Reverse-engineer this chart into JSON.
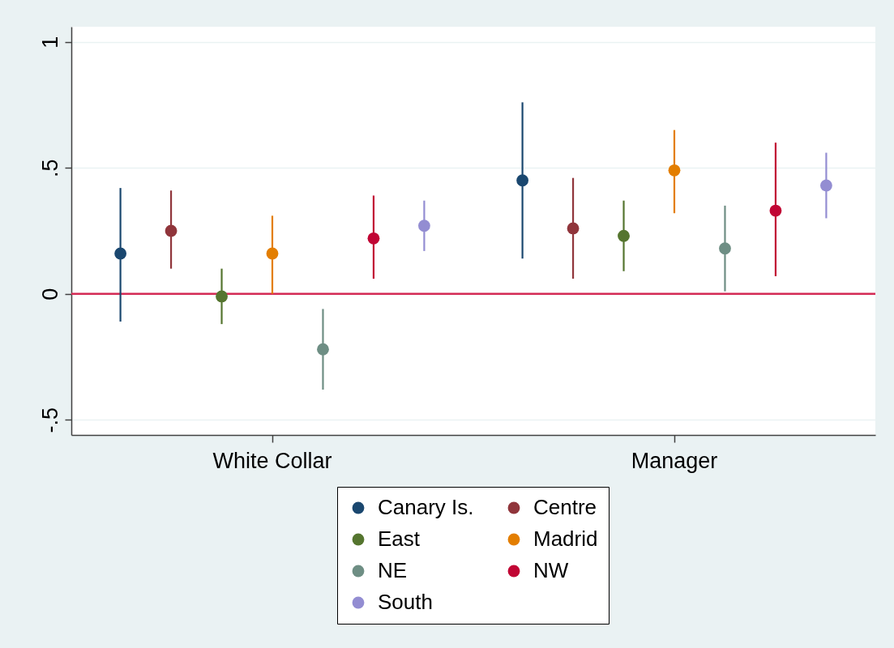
{
  "chart_data": {
    "type": "scatter",
    "categories": [
      "White Collar",
      "Manager"
    ],
    "series": [
      {
        "name": "Canary Is.",
        "color": "#1a476f",
        "values": [
          0.16,
          0.45
        ],
        "errors": [
          [
            -0.11,
            0.42
          ],
          [
            0.14,
            0.76
          ]
        ]
      },
      {
        "name": "Centre",
        "color": "#90353b",
        "values": [
          0.25,
          0.26
        ],
        "errors": [
          [
            0.1,
            0.41
          ],
          [
            0.06,
            0.46
          ]
        ]
      },
      {
        "name": "East",
        "color": "#55752f",
        "values": [
          -0.01,
          0.23
        ],
        "errors": [
          [
            -0.12,
            0.1
          ],
          [
            0.09,
            0.37
          ]
        ]
      },
      {
        "name": "Madrid",
        "color": "#e37e00",
        "values": [
          0.16,
          0.49
        ],
        "errors": [
          [
            0.0,
            0.31
          ],
          [
            0.32,
            0.65
          ]
        ]
      },
      {
        "name": "NE",
        "color": "#6e8e84",
        "values": [
          -0.22,
          0.18
        ],
        "errors": [
          [
            -0.38,
            -0.06
          ],
          [
            0.01,
            0.35
          ]
        ]
      },
      {
        "name": "NW",
        "color": "#c10534",
        "values": [
          0.22,
          0.33
        ],
        "errors": [
          [
            0.06,
            0.39
          ],
          [
            0.07,
            0.6
          ]
        ]
      },
      {
        "name": "South",
        "color": "#938dd2",
        "values": [
          0.27,
          0.43
        ],
        "errors": [
          [
            0.17,
            0.37
          ],
          [
            0.3,
            0.56
          ]
        ]
      }
    ],
    "ylim": [
      -0.56,
      1.06
    ],
    "yticks": [
      {
        "value": -0.5,
        "label": "-.5"
      },
      0,
      {
        "value": 0.5,
        "label": ".5"
      },
      1
    ],
    "ref_lines": [
      {
        "axis": "y",
        "value": 0,
        "color": "#d42a55"
      }
    ],
    "grid": "y",
    "legend": "bottom",
    "marker": "circle"
  }
}
